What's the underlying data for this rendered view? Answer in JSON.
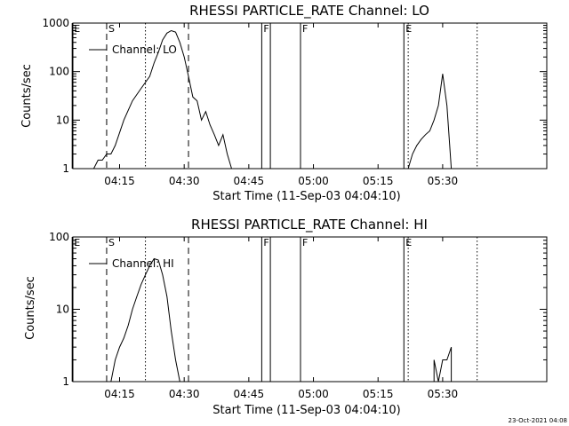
{
  "footer_timestamp": "23-Oct-2021 04:08",
  "chart_data": [
    {
      "type": "line",
      "title": "RHESSI PARTICLE_RATE Channel: LO",
      "xlabel": "Start Time (11-Sep-03 04:04:10)",
      "ylabel": "Counts/sec",
      "y_scale": "log",
      "ylim": [
        1,
        1000
      ],
      "xlim_minutes_after_04_04_10": [
        0,
        110
      ],
      "x_ticks": [
        "04:15",
        "04:30",
        "04:45",
        "05:00",
        "05:15",
        "05:30"
      ],
      "y_ticks": [
        "1",
        "10",
        "100",
        "1000"
      ],
      "legend": {
        "entries": [
          "Channel: LO"
        ],
        "placement": "top-left"
      },
      "markers": [
        {
          "label": "E",
          "time": "04:04",
          "style": "solid"
        },
        {
          "label": "S",
          "time": "04:12",
          "style": "dashed"
        },
        {
          "label": "",
          "time": "04:21",
          "style": "dotted"
        },
        {
          "label": "",
          "time": "04:31",
          "style": "dashed"
        },
        {
          "label": "F",
          "time": "04:48",
          "style": "solid"
        },
        {
          "label": "",
          "time": "04:50",
          "style": "solid"
        },
        {
          "label": "F",
          "time": "04:57",
          "style": "solid"
        },
        {
          "label": "E",
          "time": "05:21",
          "style": "solid"
        },
        {
          "label": "",
          "time": "05:22",
          "style": "dotted"
        },
        {
          "label": "",
          "time": "05:38",
          "style": "dotted"
        }
      ],
      "series": [
        {
          "name": "Channel: LO",
          "segments": [
            {
              "x": [
                "04:09",
                "04:10",
                "04:11",
                "04:12",
                "04:13",
                "04:14",
                "04:16",
                "04:18",
                "04:20",
                "04:22",
                "04:23",
                "04:24",
                "04:25",
                "04:26",
                "04:27",
                "04:28",
                "04:29",
                "04:30",
                "04:31",
                "04:32",
                "04:33",
                "04:34",
                "04:35",
                "04:36",
                "04:37",
                "04:38",
                "04:39",
                "04:40",
                "04:41"
              ],
              "y": [
                1,
                1.5,
                1.5,
                2,
                2,
                3,
                10,
                25,
                45,
                80,
                150,
                250,
                450,
                620,
                700,
                650,
                400,
                200,
                80,
                30,
                25,
                10,
                15,
                8,
                5,
                3,
                5,
                2,
                1
              ]
            },
            {
              "x": [
                "05:22",
                "05:23",
                "05:24",
                "05:25",
                "05:26",
                "05:27",
                "05:28",
                "05:29",
                "05:30",
                "05:31",
                "05:32"
              ],
              "y": [
                1,
                2,
                3,
                4,
                5,
                6,
                10,
                20,
                90,
                20,
                1
              ]
            }
          ]
        }
      ]
    },
    {
      "type": "line",
      "title": "RHESSI PARTICLE_RATE Channel: HI",
      "xlabel": "Start Time (11-Sep-03 04:04:10)",
      "ylabel": "Counts/sec",
      "y_scale": "log",
      "ylim": [
        1,
        100
      ],
      "xlim_minutes_after_04_04_10": [
        0,
        110
      ],
      "x_ticks": [
        "04:15",
        "04:30",
        "04:45",
        "05:00",
        "05:15",
        "05:30"
      ],
      "y_ticks": [
        "1",
        "10",
        "100"
      ],
      "legend": {
        "entries": [
          "Channel: HI"
        ],
        "placement": "top-left"
      },
      "markers": [
        {
          "label": "E",
          "time": "04:04",
          "style": "solid"
        },
        {
          "label": "S",
          "time": "04:12",
          "style": "dashed"
        },
        {
          "label": "",
          "time": "04:21",
          "style": "dotted"
        },
        {
          "label": "",
          "time": "04:31",
          "style": "dashed"
        },
        {
          "label": "F",
          "time": "04:48",
          "style": "solid"
        },
        {
          "label": "",
          "time": "04:50",
          "style": "solid"
        },
        {
          "label": "F",
          "time": "04:57",
          "style": "solid"
        },
        {
          "label": "E",
          "time": "05:21",
          "style": "solid"
        },
        {
          "label": "",
          "time": "05:22",
          "style": "dotted"
        },
        {
          "label": "",
          "time": "05:38",
          "style": "dotted"
        }
      ],
      "series": [
        {
          "name": "Channel: HI",
          "segments": [
            {
              "x": [
                "04:13",
                "04:14",
                "04:15",
                "04:16",
                "04:17",
                "04:18",
                "04:19",
                "04:20",
                "04:21",
                "04:22",
                "04:23",
                "04:24",
                "04:25",
                "04:26",
                "04:27",
                "04:28",
                "04:29"
              ],
              "y": [
                1,
                2,
                3,
                4,
                6,
                10,
                15,
                22,
                30,
                40,
                50,
                48,
                30,
                15,
                5,
                2,
                1
              ]
            },
            {
              "x": [
                "05:28",
                "05:29",
                "05:30",
                "05:31",
                "05:32"
              ],
              "y": [
                2,
                1,
                2,
                2,
                3
              ]
            }
          ]
        }
      ]
    }
  ]
}
